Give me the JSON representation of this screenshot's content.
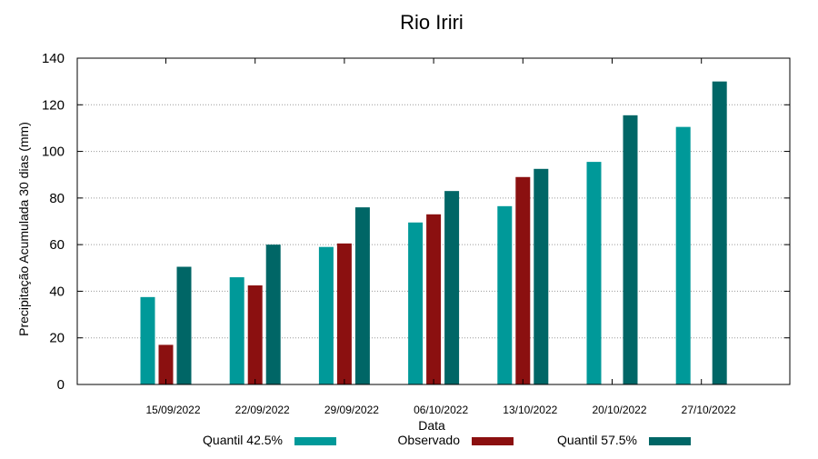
{
  "chart_data": {
    "type": "bar",
    "title": "Rio Iriri",
    "xlabel": "Data",
    "ylabel": "Precipitação Acumulada 30 dias (mm)",
    "ylim": [
      0,
      140
    ],
    "yticks": [
      0,
      20,
      40,
      60,
      80,
      100,
      120,
      140
    ],
    "grid": true,
    "legend_position": "bottom",
    "categories": [
      "15/09/2022",
      "22/09/2022",
      "29/09/2022",
      "06/10/2022",
      "13/10/2022",
      "20/10/2022",
      "27/10/2022"
    ],
    "series": [
      {
        "name": "Quantil 42.5%",
        "color": "#009999",
        "values": [
          37.5,
          46,
          59,
          69.5,
          76.5,
          95.5,
          110.5
        ]
      },
      {
        "name": "Observado",
        "color": "#8b1010",
        "values": [
          17,
          42.5,
          60.5,
          73,
          89,
          null,
          null
        ]
      },
      {
        "name": "Quantil 57.5%",
        "color": "#006666",
        "values": [
          50.5,
          60,
          76,
          83,
          92.5,
          115.5,
          130
        ]
      }
    ]
  }
}
